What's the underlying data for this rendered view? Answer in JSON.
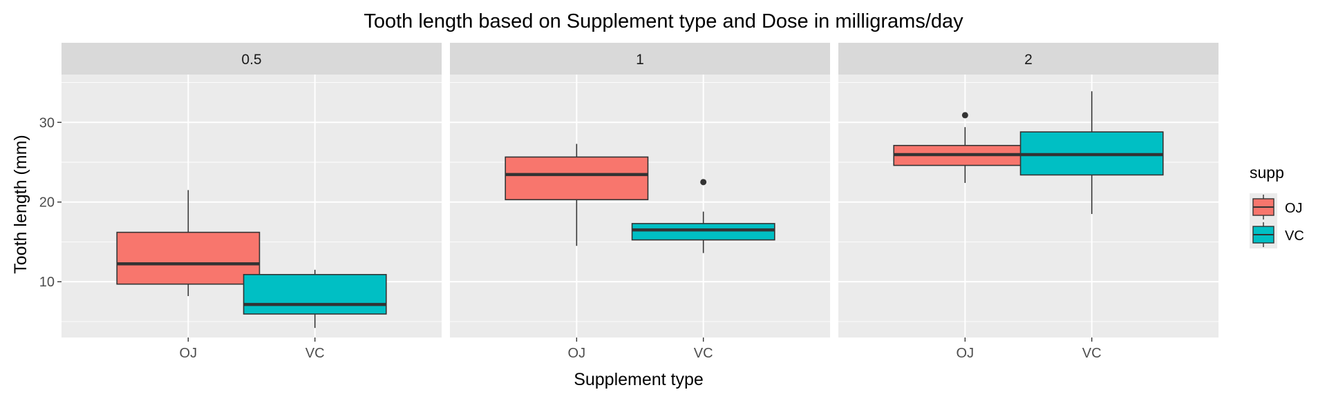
{
  "colors": {
    "panel_bg": "#EBEBEB",
    "strip_bg": "#D9D9D9",
    "grid_major": "#FFFFFF",
    "box_outline": "#333333",
    "OJ": "#F8766D",
    "VC": "#00BFC4",
    "text_dark": "#000000",
    "text_tick": "#4D4D4D",
    "text_strip": "#1A1A1A"
  },
  "chart_data": {
    "type": "boxplot",
    "title": "Tooth length based on Supplement type and Dose in milligrams/day",
    "xlabel": "Supplement type",
    "ylabel": "Tooth length (mm)",
    "ylim": [
      3,
      36
    ],
    "y_ticks": [
      10,
      20,
      30
    ],
    "y_tick_labels": [
      "10",
      "20",
      "30"
    ],
    "categories": [
      "OJ",
      "VC"
    ],
    "grid": true,
    "legend": {
      "title": "supp",
      "position": "right",
      "entries": [
        {
          "label": "OJ",
          "color_key": "OJ"
        },
        {
          "label": "VC",
          "color_key": "VC"
        }
      ]
    },
    "facets": [
      {
        "label": "0.5",
        "boxes": [
          {
            "category": "OJ",
            "min": 8.2,
            "q1": 9.7,
            "median": 12.25,
            "q3": 16.2,
            "max": 21.5,
            "outliers": []
          },
          {
            "category": "VC",
            "min": 4.2,
            "q1": 5.95,
            "median": 7.15,
            "q3": 10.9,
            "max": 11.5,
            "outliers": []
          }
        ]
      },
      {
        "label": "1",
        "boxes": [
          {
            "category": "OJ",
            "min": 14.5,
            "q1": 20.3,
            "median": 23.45,
            "q3": 25.65,
            "max": 27.3,
            "outliers": []
          },
          {
            "category": "VC",
            "min": 13.6,
            "q1": 15.25,
            "median": 16.5,
            "q3": 17.3,
            "max": 18.8,
            "outliers": [
              22.5
            ]
          }
        ]
      },
      {
        "label": "2",
        "boxes": [
          {
            "category": "OJ",
            "min": 22.4,
            "q1": 24.6,
            "median": 25.95,
            "q3": 27.1,
            "max": 29.4,
            "outliers": [
              30.9
            ]
          },
          {
            "category": "VC",
            "min": 18.5,
            "q1": 23.4,
            "median": 25.95,
            "q3": 28.8,
            "max": 33.9,
            "outliers": []
          }
        ]
      }
    ]
  }
}
